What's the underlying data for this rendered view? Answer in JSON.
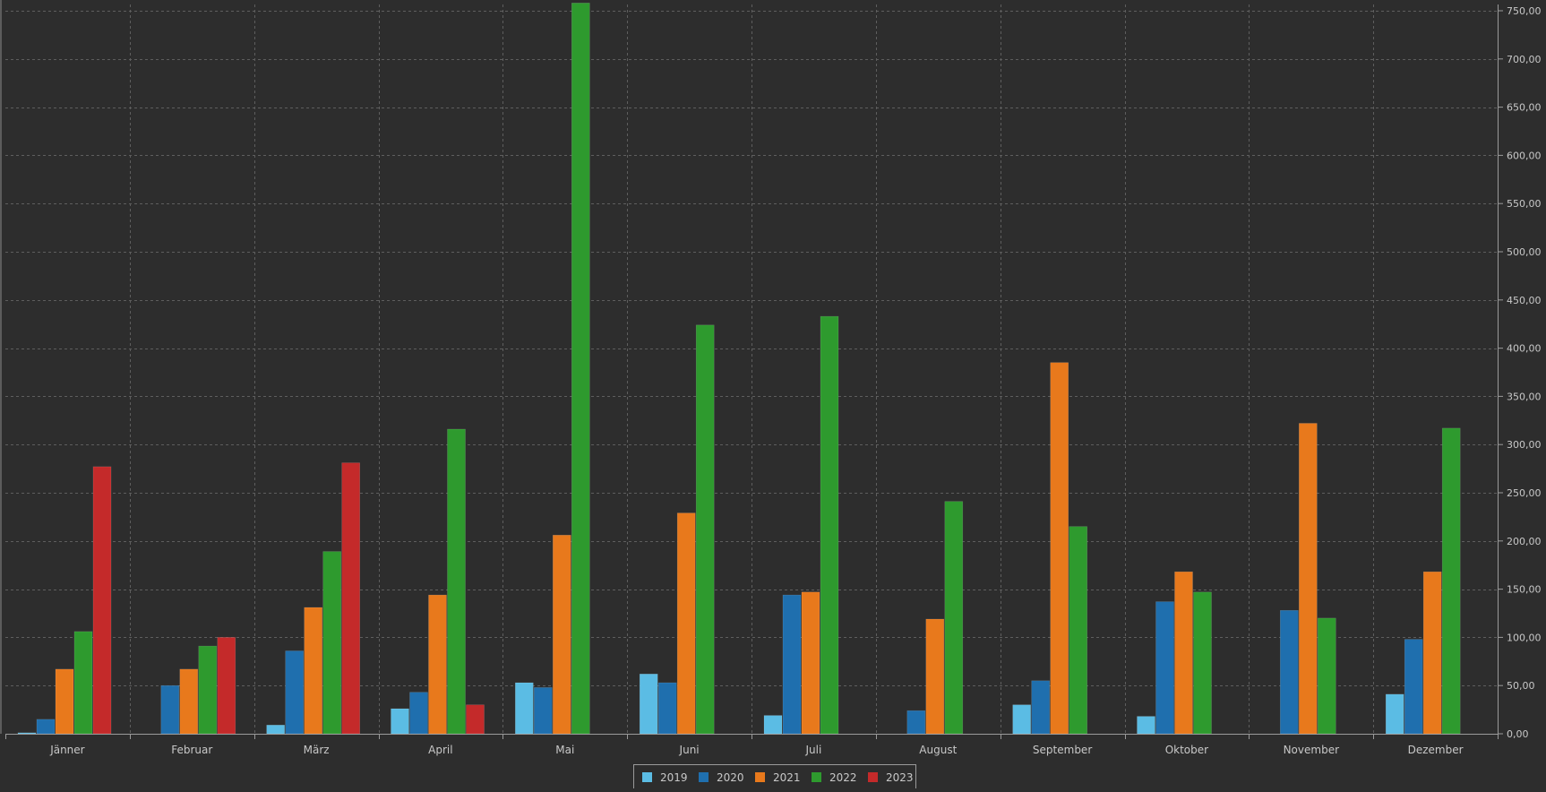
{
  "chart_data": {
    "type": "bar",
    "title": "",
    "xlabel": "",
    "ylabel": "",
    "categories": [
      "Jänner",
      "Februar",
      "März",
      "April",
      "Mai",
      "Juni",
      "Juli",
      "August",
      "September",
      "Oktober",
      "November",
      "Dezember"
    ],
    "ylim": [
      0,
      750
    ],
    "yticks": [
      0,
      50,
      100,
      150,
      200,
      250,
      300,
      350,
      400,
      450,
      500,
      550,
      600,
      650,
      700,
      750
    ],
    "ytick_labels": [
      "0,00",
      "50,00",
      "100,00",
      "150,00",
      "200,00",
      "250,00",
      "300,00",
      "350,00",
      "400,00",
      "450,00",
      "500,00",
      "550,00",
      "600,00",
      "650,00",
      "700,00",
      "750,00"
    ],
    "y_axis_position": "right",
    "grid": true,
    "legend_position": "bottom-center",
    "series": [
      {
        "name": "2019",
        "color": "#5bbce4",
        "values": [
          1,
          0,
          9,
          26,
          53,
          62,
          19,
          0,
          30,
          18,
          0,
          41
        ]
      },
      {
        "name": "2020",
        "color": "#1f6fae",
        "values": [
          15,
          50,
          86,
          43,
          48,
          53,
          144,
          24,
          55,
          137,
          128,
          98
        ]
      },
      {
        "name": "2021",
        "color": "#e8791c",
        "values": [
          67,
          67,
          131,
          144,
          206,
          229,
          147,
          119,
          385,
          168,
          322,
          168
        ]
      },
      {
        "name": "2022",
        "color": "#2e9a2e",
        "values": [
          106,
          91,
          189,
          316,
          758,
          424,
          433,
          241,
          215,
          147,
          120,
          317
        ]
      },
      {
        "name": "2023",
        "color": "#c42a2a",
        "values": [
          277,
          100,
          281,
          30,
          null,
          null,
          null,
          null,
          null,
          null,
          null,
          null
        ]
      }
    ]
  }
}
